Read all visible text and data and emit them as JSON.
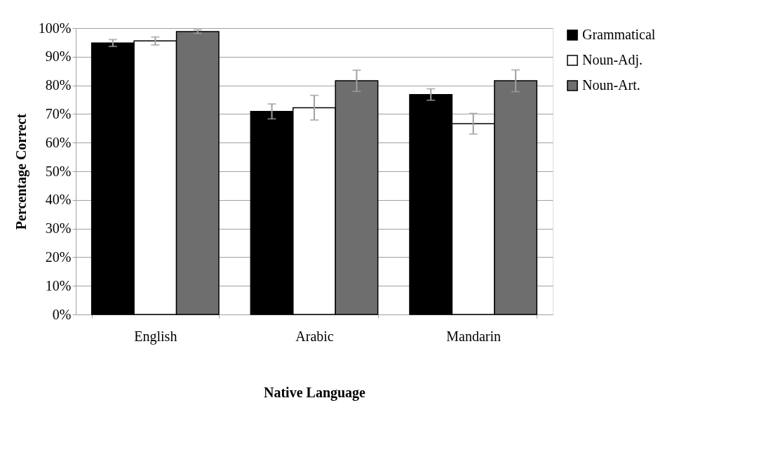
{
  "chart_data": {
    "type": "bar",
    "xlabel": "Native Language",
    "ylabel": "Percentage Correct",
    "categories": [
      "English",
      "Arabic",
      "Mandarin"
    ],
    "series": [
      {
        "name": "Grammatical",
        "color": "#000000",
        "values": [
          94.8,
          70.9,
          76.8
        ],
        "errors": [
          1.2,
          2.6,
          2.0
        ]
      },
      {
        "name": "Noun-Adj.",
        "color": "#ffffff",
        "values": [
          95.5,
          72.2,
          66.6
        ],
        "errors": [
          1.4,
          4.3,
          3.6
        ]
      },
      {
        "name": "Noun-Art.",
        "color": "#6e6e6e",
        "values": [
          98.8,
          81.6,
          81.6
        ],
        "errors": [
          0.6,
          3.7,
          3.8
        ]
      }
    ],
    "ylim": [
      0,
      100
    ],
    "yticks": [
      {
        "value": 0,
        "label": "0%"
      },
      {
        "value": 10,
        "label": "10%"
      },
      {
        "value": 20,
        "label": "20%"
      },
      {
        "value": 30,
        "label": "30%"
      },
      {
        "value": 40,
        "label": "40%"
      },
      {
        "value": 50,
        "label": "50%"
      },
      {
        "value": 60,
        "label": "60%"
      },
      {
        "value": 70,
        "label": "70%"
      },
      {
        "value": 80,
        "label": "80%"
      },
      {
        "value": 90,
        "label": "90%"
      },
      {
        "value": 100,
        "label": "100%"
      }
    ],
    "grid": "y",
    "legend": "right"
  }
}
